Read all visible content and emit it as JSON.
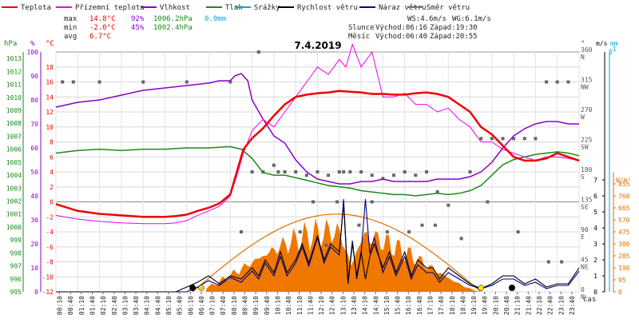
{
  "chart_data": {
    "type": "line",
    "title": "7.4.2019",
    "legend": [
      {
        "label": "Teplota",
        "color": "#ee0000"
      },
      {
        "label": "Přízemní teplota",
        "color": "#ee00ee"
      },
      {
        "label": "Vlhkost",
        "color": "#8a00c8"
      },
      {
        "label": "Tlak",
        "color": "#1a8a1a"
      },
      {
        "label": "Srážky",
        "color": "#00a8d8"
      },
      {
        "label": "Rychlost větru",
        "color": "#000000"
      },
      {
        "label": "Náraz větru",
        "color": "#000088"
      },
      {
        "label": "Směr větru",
        "color": "#777777"
      }
    ],
    "stats": {
      "max": {
        "label": "max",
        "temp": "14.8°C",
        "hum": "92%",
        "press": "1006.2hPa",
        "rain": "0.0mm"
      },
      "min": {
        "label": "min",
        "temp": "-2.0°C",
        "hum": "45%",
        "press": "1002.4hPa"
      },
      "avg": {
        "label": "avg",
        "temp": "6.7°C"
      }
    },
    "wind_info": {
      "ws": "WS:4.6m/s",
      "wg": "WG:6.1m/s"
    },
    "sun": {
      "label": "Slunce",
      "rise": "Východ:06:16",
      "set": "Západ:19:30"
    },
    "moon": {
      "label": "Měsíc",
      "rise": "Východ:06:40",
      "set": "Západ:20:55"
    },
    "axis_units": {
      "press": "hPa",
      "hum": "%",
      "temp": "°C",
      "dir": "°",
      "wind": "m/s",
      "rain": "mm",
      "solar": "W/m²",
      "time": "čas"
    },
    "axes": {
      "temp_ticks": [
        "-12",
        "-10",
        "-8",
        "-6",
        "-4",
        "-2",
        "0",
        "2",
        "4",
        "6",
        "8",
        "10",
        "12",
        "14",
        "16",
        "18"
      ],
      "hum_ticks": [
        "0",
        "10",
        "20",
        "30",
        "40",
        "50",
        "60",
        "70",
        "80",
        "90",
        "100"
      ],
      "press_ticks": [
        "995",
        "996",
        "997",
        "998",
        "999",
        "1000",
        "1001",
        "1002",
        "1003",
        "1004",
        "1005",
        "1006",
        "1007",
        "1008",
        "1009",
        "1010",
        "1011",
        "1012",
        "1013"
      ],
      "dir_ticks": [
        {
          "deg": "0",
          "name": "N"
        },
        {
          "deg": "45",
          "name": "NE"
        },
        {
          "deg": "90",
          "name": "E"
        },
        {
          "deg": "135",
          "name": "SE"
        },
        {
          "deg": "180",
          "name": "S"
        },
        {
          "deg": "225",
          "name": "SW"
        },
        {
          "deg": "270",
          "name": "W"
        },
        {
          "deg": "315",
          "name": "NW"
        },
        {
          "deg": "360",
          "name": "N"
        }
      ],
      "wind_ticks": [
        "0",
        "1",
        "2",
        "3",
        "4",
        "5",
        "6",
        "7"
      ],
      "solar_ticks": [
        "0",
        "95",
        "190",
        "285",
        "380",
        "475",
        "570",
        "665",
        "760",
        "855"
      ],
      "rain_ticks": [
        "-1",
        "0"
      ],
      "time_ticks": [
        "00:10",
        "00:40",
        "01:10",
        "01:40",
        "02:10",
        "02:40",
        "03:10",
        "03:40",
        "04:10",
        "04:40",
        "05:10",
        "05:40",
        "06:10",
        "06:40",
        "07:10",
        "07:40",
        "08:10",
        "08:40",
        "09:10",
        "09:40",
        "10:10",
        "10:40",
        "11:10",
        "11:40",
        "12:10",
        "12:40",
        "13:10",
        "13:40",
        "14:10",
        "14:40",
        "15:10",
        "15:40",
        "16:10",
        "16:40",
        "17:10",
        "17:40",
        "18:10",
        "18:40",
        "19:10",
        "19:40",
        "20:10",
        "20:40",
        "21:10",
        "21:40",
        "22:10",
        "22:40",
        "23:10",
        "23:40"
      ]
    },
    "series": [
      {
        "name": "Teplota",
        "unit": "°C",
        "x": [
          0,
          1,
          2,
          3,
          4,
          5,
          5.5,
          6,
          6.5,
          7,
          7.5,
          8,
          8.3,
          8.6,
          9,
          9.5,
          10,
          10.5,
          11,
          11.5,
          12,
          12.5,
          13,
          13.5,
          14,
          14.5,
          15,
          15.5,
          16,
          16.5,
          17,
          17.5,
          18,
          18.5,
          19,
          19.5,
          20,
          20.5,
          21,
          21.5,
          22,
          22.5,
          23,
          23.5,
          24
        ],
        "values": [
          -0.3,
          -1.2,
          -1.6,
          -1.8,
          -2.0,
          -2.0,
          -1.9,
          -1.7,
          -1.2,
          -0.8,
          -0.2,
          1.0,
          4,
          7,
          8.5,
          9.8,
          11.5,
          13,
          14,
          14.3,
          14.5,
          14.6,
          14.8,
          14.7,
          14.6,
          14.4,
          14.4,
          14.3,
          14.3,
          14.5,
          14.6,
          14.4,
          14.0,
          13.0,
          12.0,
          10.0,
          9.0,
          7.5,
          6.0,
          5.5,
          5.5,
          5.8,
          6.5,
          6.0,
          5.5
        ]
      },
      {
        "name": "Přízemní teplota",
        "unit": "°C",
        "x": [
          0,
          1,
          2,
          3,
          4,
          5,
          5.5,
          6,
          6.5,
          7,
          7.5,
          8,
          8.3,
          8.6,
          9,
          9.5,
          10,
          10.5,
          11,
          11.5,
          12,
          12.5,
          13,
          13.3,
          13.6,
          14,
          14.5,
          15,
          15.5,
          16,
          16.5,
          17,
          17.5,
          18,
          18.5,
          19,
          19.5,
          20,
          20.5,
          21,
          21.5,
          22,
          22.5,
          23,
          23.5,
          24
        ],
        "values": [
          -1.8,
          -2.3,
          -2.6,
          -2.8,
          -2.9,
          -2.9,
          -2.8,
          -2.5,
          -1.8,
          -1.2,
          -0.6,
          0.8,
          3.5,
          6.5,
          9.5,
          11,
          10,
          12,
          14,
          16,
          18,
          17,
          19,
          18,
          21,
          18,
          20,
          14,
          14,
          14.5,
          13,
          13,
          12,
          12.5,
          11,
          10,
          8,
          8,
          7,
          6.5,
          6,
          5.5,
          6,
          6,
          5.8,
          5.5
        ]
      },
      {
        "name": "Vlhkost",
        "unit": "%",
        "x": [
          0,
          1,
          2,
          3,
          4,
          5,
          6,
          7,
          7.5,
          8,
          8.2,
          8.5,
          8.8,
          9,
          9.5,
          10,
          10.5,
          11,
          11.5,
          12,
          12.5,
          13,
          13.5,
          14,
          14.5,
          15,
          15.5,
          16,
          16.5,
          17,
          17.5,
          18,
          18.5,
          19,
          19.5,
          20,
          20.5,
          21,
          21.5,
          22,
          22.5,
          23,
          23.5,
          24
        ],
        "values": [
          77,
          79,
          80,
          82,
          84,
          85,
          86,
          87,
          88,
          88,
          90,
          91,
          88,
          80,
          72,
          65,
          62,
          55,
          50,
          47,
          46,
          45,
          45,
          46,
          46,
          47,
          46,
          46,
          46,
          46,
          47,
          47,
          47,
          48,
          50,
          54,
          60,
          65,
          68,
          70,
          71,
          71,
          70,
          70
        ]
      },
      {
        "name": "Tlak",
        "unit": "hPa",
        "x": [
          0,
          1,
          2,
          3,
          4,
          5,
          6,
          7,
          8,
          8.5,
          9,
          9.5,
          10,
          10.5,
          11,
          11.5,
          12,
          12.5,
          13,
          13.5,
          14,
          14.5,
          15,
          15.5,
          16,
          16.5,
          17,
          17.5,
          18,
          18.5,
          19,
          19.5,
          20,
          20.5,
          21,
          21.5,
          22,
          22.5,
          23,
          23.5,
          24
        ],
        "values": [
          1005.7,
          1005.9,
          1006.0,
          1005.9,
          1006.0,
          1006.0,
          1006.1,
          1006.1,
          1006.2,
          1006.0,
          1005.3,
          1004.2,
          1004.0,
          1004.0,
          1003.8,
          1003.6,
          1003.4,
          1003.2,
          1003.1,
          1003.0,
          1002.8,
          1002.7,
          1002.6,
          1002.5,
          1002.5,
          1002.4,
          1002.5,
          1002.6,
          1002.5,
          1002.6,
          1002.8,
          1003.2,
          1004.0,
          1004.8,
          1005.2,
          1005.4,
          1005.6,
          1005.7,
          1005.8,
          1005.7,
          1005.5
        ]
      },
      {
        "name": "Rychlost větru",
        "unit": "m/s",
        "x": [
          0,
          1,
          2,
          3,
          4,
          5,
          5.5,
          6,
          6.5,
          7,
          7.5,
          8,
          8.5,
          9,
          9.3,
          9.6,
          10,
          10.3,
          10.6,
          11,
          11.3,
          11.6,
          12,
          12.3,
          12.6,
          13,
          13.2,
          13.4,
          13.6,
          13.8,
          14,
          14.2,
          14.4,
          14.6,
          15,
          15.3,
          15.6,
          16,
          16.3,
          16.6,
          17,
          17.3,
          17.6,
          18,
          18.5,
          19,
          19.5,
          20,
          20.5,
          21,
          21.5,
          22,
          22.5,
          23,
          23.5,
          24
        ],
        "values": [
          0,
          0,
          0,
          0,
          0,
          0,
          0,
          0.3,
          0.6,
          1.0,
          0.5,
          1.0,
          0.8,
          1.5,
          1.0,
          2.0,
          1.2,
          2.5,
          1.2,
          2.0,
          3.0,
          1.8,
          3.5,
          2.0,
          3.0,
          2.5,
          5.5,
          0.5,
          3.0,
          1.0,
          2.5,
          0.8,
          2.2,
          3.0,
          1.5,
          2.5,
          1.2,
          2.5,
          1.0,
          2.0,
          1.5,
          1.5,
          0.8,
          1.5,
          1.0,
          0.5,
          0.2,
          0.5,
          1.0,
          1.0,
          0.5,
          0.8,
          0.3,
          0.5,
          0.5,
          1.5
        ]
      },
      {
        "name": "Náraz větru",
        "unit": "m/s",
        "x": [
          0,
          6,
          6.5,
          7,
          7.5,
          8,
          8.5,
          9,
          9.3,
          9.6,
          10,
          10.3,
          10.6,
          11,
          11.3,
          11.6,
          12,
          12.3,
          12.6,
          13,
          13.2,
          13.4,
          13.6,
          13.8,
          14,
          14.2,
          14.4,
          14.6,
          15,
          15.3,
          15.6,
          16,
          16.3,
          16.6,
          17,
          17.3,
          17.6,
          18,
          18.5,
          19,
          19.5,
          20,
          20.5,
          21,
          21.5,
          22,
          22.5,
          23,
          23.5,
          24
        ],
        "values": [
          0,
          0,
          0.3,
          0.7,
          0.4,
          0.9,
          0.6,
          1.3,
          0.8,
          1.8,
          1.0,
          2.2,
          1.0,
          1.8,
          2.8,
          1.6,
          3.4,
          1.8,
          2.8,
          2.3,
          5.8,
          0.6,
          3.2,
          0.8,
          2.4,
          5.8,
          2.4,
          3.4,
          1.2,
          2.2,
          1.0,
          2.2,
          0.8,
          1.7,
          1.2,
          1.2,
          0.6,
          1.2,
          0.8,
          0.4,
          0.2,
          0.4,
          0.8,
          0.8,
          0.4,
          0.6,
          0.2,
          0.4,
          0.4,
          1.3
        ]
      },
      {
        "name": "Směr větru",
        "unit": "°",
        "x": [
          0.3,
          0.8,
          2,
          4,
          6,
          8,
          8.5,
          9,
          9.5,
          10,
          10.5,
          11,
          11.5,
          12,
          12.5,
          13,
          13.5,
          14,
          14.5,
          15,
          15.5,
          16,
          16.5,
          17,
          17.5,
          18,
          19,
          19.5,
          20,
          20.5,
          21,
          21.5,
          22,
          22.5,
          23,
          23.5,
          9.3,
          10.2,
          11.2,
          12.4,
          12.9,
          13.9,
          15.2,
          16.2,
          17.4,
          18.6,
          19.8,
          21.2,
          22.6,
          23.2,
          11.8,
          13.2,
          14.5,
          16.8
        ],
        "values": [
          315,
          315,
          315,
          315,
          315,
          315,
          90,
          180,
          180,
          190,
          180,
          180,
          175,
          180,
          175,
          180,
          180,
          180,
          175,
          170,
          175,
          180,
          175,
          180,
          150,
          130,
          180,
          230,
          230,
          230,
          230,
          230,
          230,
          315,
          315,
          315,
          360,
          180,
          90,
          70,
          135,
          100,
          90,
          90,
          100,
          80,
          135,
          90,
          45,
          45,
          135,
          180,
          135,
          100
        ]
      }
    ]
  }
}
